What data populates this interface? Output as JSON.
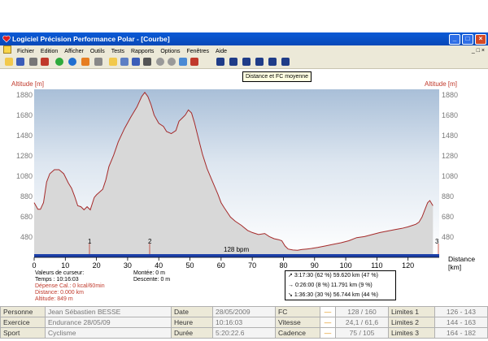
{
  "window": {
    "title": "Logiciel Précision Performance Polar - [Courbe]",
    "controls": [
      "_",
      "□",
      "×"
    ]
  },
  "menu": {
    "items": [
      "Fichier",
      "Edition",
      "Afficher",
      "Outils",
      "Tests",
      "Rapports",
      "Options",
      "Fenêtres",
      "Aide"
    ],
    "mdi_controls": "_ □ ×"
  },
  "toolbar": {
    "tooltip": "Distance et FC moyenne"
  },
  "chart": {
    "left_axis_title": "Altitude [m]",
    "right_axis_title": "Altitude [m]",
    "distance_label_1": "Distance",
    "distance_label_2": "[km]",
    "hr_label": "128 bpm",
    "markers": [
      "1",
      "2",
      "3"
    ]
  },
  "chart_data": {
    "type": "area",
    "title": "",
    "xlabel": "Distance [km]",
    "ylabel": "Altitude [m]",
    "xlim": [
      0,
      130
    ],
    "ylim": [
      330,
      1930
    ],
    "grid": false,
    "y_ticks": [
      480,
      680,
      880,
      1080,
      1280,
      1480,
      1680,
      1880
    ],
    "x_ticks": [
      0,
      10,
      20,
      30,
      40,
      50,
      60,
      70,
      80,
      90,
      100,
      110,
      120
    ],
    "series": [
      {
        "x": [
          0,
          1.2,
          2,
          3,
          4,
          5,
          6.5,
          8,
          9.5,
          11,
          12,
          13,
          14,
          15,
          16,
          17,
          18,
          19.3,
          20,
          22,
          23,
          24,
          25.5,
          27,
          29,
          31,
          33,
          34.5,
          35.5,
          36.5,
          37.5,
          38.5,
          40,
          41.5,
          42.5,
          44,
          45.5,
          46.5,
          47.5,
          48.5,
          49.5,
          50.5,
          51.5,
          52.5,
          54,
          55.5,
          57,
          59,
          60,
          61,
          63,
          64.5,
          66.5,
          68.5,
          70,
          72,
          74,
          75.5,
          77,
          78.5,
          79.5,
          80.5,
          81.5,
          83,
          84.5,
          86,
          87.5,
          89,
          91,
          93.5,
          96,
          98.5,
          101,
          103.5,
          106,
          108.5,
          111,
          113.5,
          116,
          118,
          120,
          121.5,
          122.5,
          123.5,
          124.5,
          125.5,
          126.3,
          127,
          128
        ],
        "y": [
          830,
          765,
          765,
          830,
          1030,
          1110,
          1150,
          1150,
          1110,
          1020,
          970,
          890,
          800,
          790,
          760,
          790,
          760,
          880,
          905,
          960,
          1050,
          1180,
          1290,
          1420,
          1550,
          1660,
          1760,
          1860,
          1900,
          1860,
          1780,
          1680,
          1600,
          1570,
          1520,
          1500,
          1530,
          1620,
          1650,
          1680,
          1730,
          1700,
          1600,
          1480,
          1300,
          1160,
          1050,
          910,
          830,
          780,
          690,
          650,
          610,
          560,
          540,
          520,
          530,
          500,
          480,
          470,
          460,
          410,
          380,
          370,
          368,
          375,
          380,
          385,
          395,
          410,
          425,
          440,
          460,
          490,
          500,
          520,
          540,
          555,
          570,
          580,
          595,
          610,
          620,
          640,
          690,
          770,
          830,
          850,
          800
        ]
      }
    ]
  },
  "cursor": {
    "header": "Valeurs de curseur:",
    "temps": "Temps : 10:16:03",
    "depense": "Dépense Cal.: 0 kcal/60min",
    "distance": "Distance: 0.000 km",
    "altitude": "Altitude: 849 m",
    "montee": "Montée: 0 m",
    "descente": "Descente: 0 m"
  },
  "laps": [
    {
      "arrow": "↗",
      "text": "3:17:30  (62 %)  59.620 km  (47 %)"
    },
    {
      "arrow": "→",
      "text": "0:26:00   (8 %)  11.791 km   (9 %)"
    },
    {
      "arrow": "↘",
      "text": "1:36:30  (30 %)  56.744 km  (44 %)"
    }
  ],
  "info_table": [
    {
      "label": "Personne",
      "value": "Jean Sébastien BESSE",
      "mlabel": "Date",
      "mvalue": "28/05/2009",
      "mtx": "FC",
      "mtv": "128 / 160",
      "lim": "Limites 1",
      "limv": "126 - 143"
    },
    {
      "label": "Exercice",
      "value": "Endurance 28/05/09",
      "mlabel": "Heure",
      "mvalue": "10:16:03",
      "mtx": "Vitesse",
      "mtv": "24,1 / 61,6",
      "lim": "Limites 2",
      "limv": "144 - 163"
    },
    {
      "label": "Sport",
      "value": "Cyclisme",
      "mlabel": "Durée",
      "mvalue": "5:20:22.6",
      "mtx": "Cadence",
      "mtv": "75 / 105",
      "lim": "Limites 3",
      "limv": "164 - 182"
    }
  ],
  "colors": {
    "area_fill": "#d8d8d8",
    "profile_line": "#a52a2a",
    "hr_bar": "#1c3fa8",
    "accent_red": "#c0392b"
  }
}
